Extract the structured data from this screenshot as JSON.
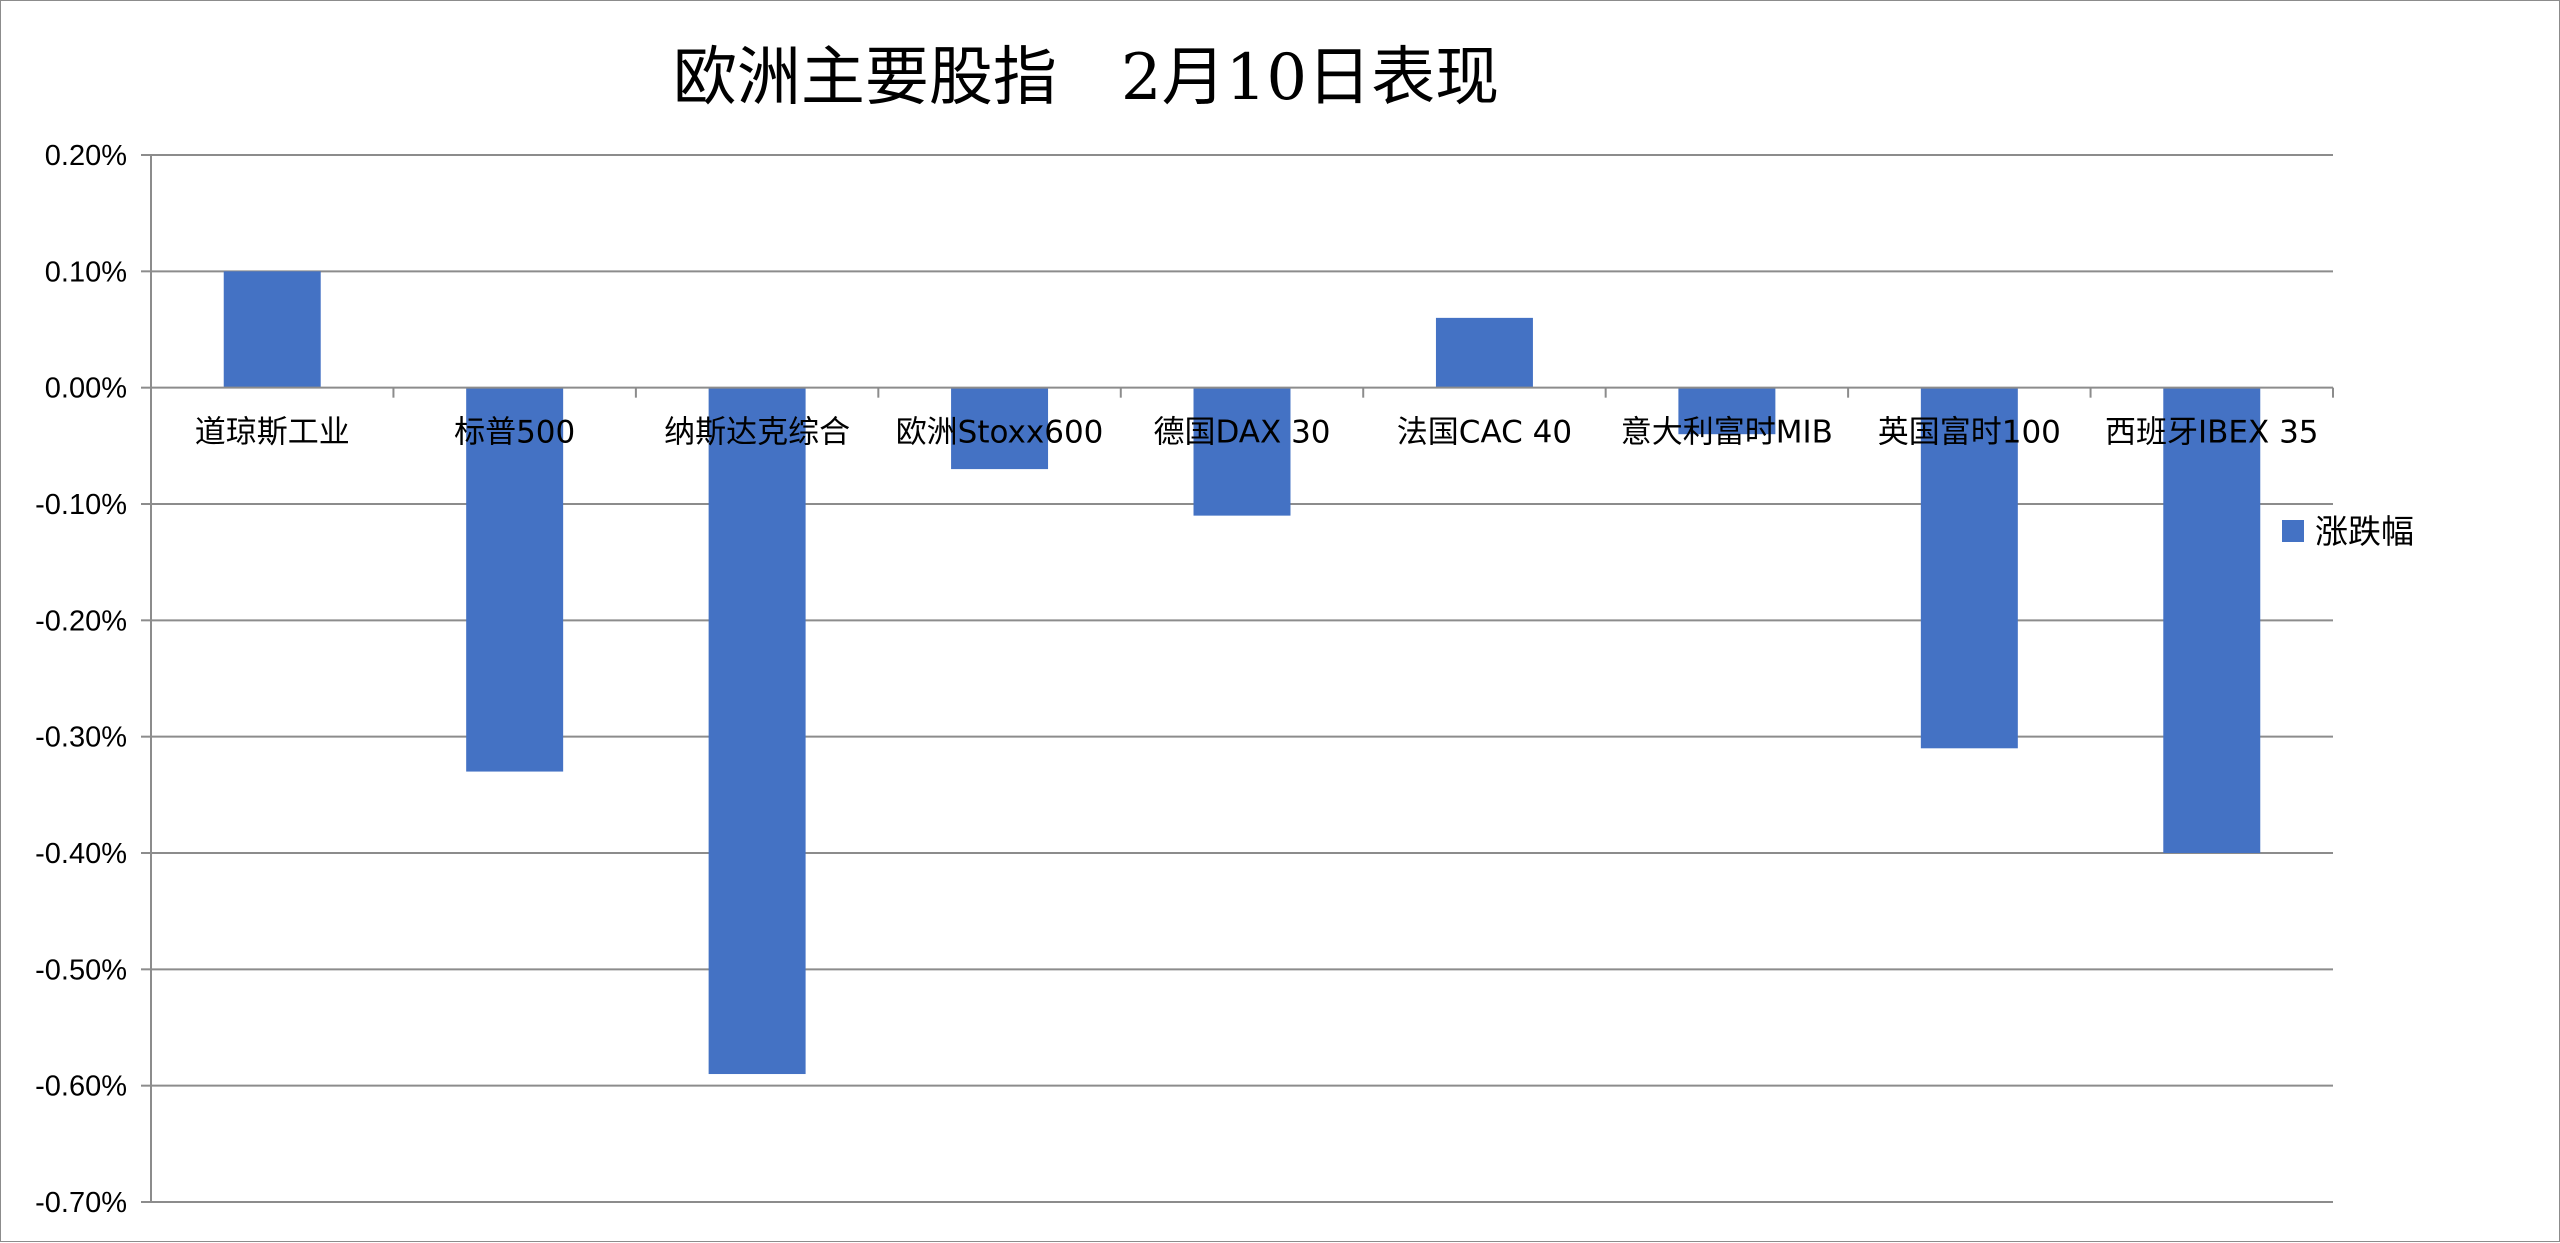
{
  "chart_data": {
    "type": "bar",
    "title": "欧洲主要股指　2月10日表现",
    "categories": [
      "道琼斯工业",
      "标普500",
      "纳斯达克综合",
      "欧洲Stoxx600",
      "德国DAX 30",
      "法国CAC 40",
      "意大利富时MIB",
      "英国富时100",
      "西班牙IBEX 35"
    ],
    "series": [
      {
        "name": "涨跌幅",
        "values": [
          0.1,
          -0.33,
          -0.59,
          -0.07,
          -0.11,
          0.06,
          -0.04,
          -0.31,
          -0.4
        ]
      }
    ],
    "ylim": [
      -0.7,
      0.2
    ],
    "y_ticks": [
      "0.20%",
      "0.10%",
      "0.00%",
      "-0.10%",
      "-0.20%",
      "-0.30%",
      "-0.40%",
      "-0.50%",
      "-0.60%",
      "-0.70%"
    ],
    "y_unit": "%",
    "grid": true,
    "legend_position": "right",
    "colors": {
      "bar": "#4472C4",
      "grid": "#8c8c8c"
    }
  }
}
